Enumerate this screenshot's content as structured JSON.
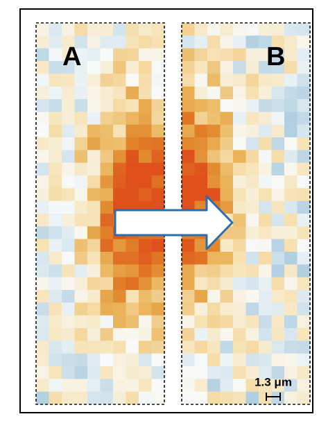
{
  "panels": [
    {
      "label": "A"
    },
    {
      "label": "B"
    }
  ],
  "scale_bar": {
    "label": "1.3 μm"
  }
}
